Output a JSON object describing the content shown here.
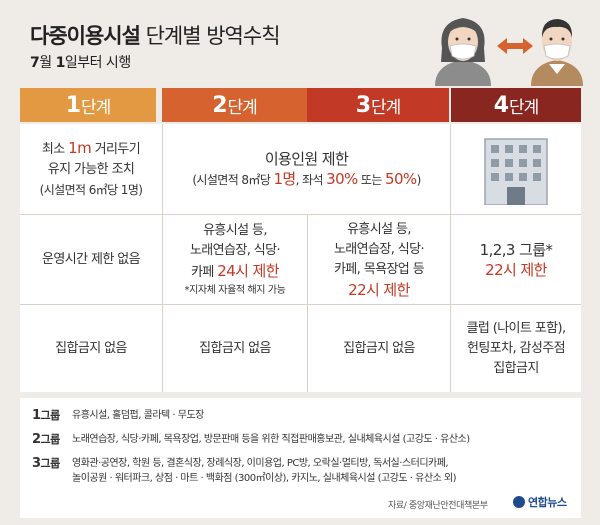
{
  "title": {
    "bold": "다중이용시설",
    "rest": " 단계별 방역수칙"
  },
  "subtitle": {
    "month": "7",
    "m1": "월 ",
    "day": "1",
    "m2": "일부터 시행"
  },
  "stages": [
    {
      "num": "1",
      "label": "단계",
      "color": "#e39942"
    },
    {
      "num": "2",
      "label": "단계",
      "color": "#d5622f"
    },
    {
      "num": "3",
      "label": "단계",
      "color": "#c23a26"
    },
    {
      "num": "4",
      "label": "단계",
      "color": "#8a2620"
    }
  ],
  "row1": {
    "s1_a": "최소 ",
    "s1_red": "1m",
    "s1_b": " 거리두기",
    "s1_line2": "유지 가능한 조치",
    "s1_line3": "(시설면적 6㎡당 1명)",
    "s23_line1": "이용인원 제한",
    "s23_a": "(시설면적 8㎡당 ",
    "s23_red1": "1명",
    "s23_b": ", 좌석 ",
    "s23_red2": "30%",
    "s23_c": " 또는 ",
    "s23_red3": "50%",
    "s23_d": ")",
    "s4_icon": "building-icon"
  },
  "row2": {
    "s1": "운영시간 제한 없음",
    "s2_line1": "유흥시설 등,",
    "s2_line2": "노래연습장, 식당·",
    "s2_a": "카페 ",
    "s2_red": "24시 제한",
    "s2_note": "*지자체 자율적 해지 가능",
    "s3_line1": "유흥시설 등,",
    "s3_line2": "노래연습장, 식당·",
    "s3_line3": "카페, 목욕장업 등",
    "s3_red": "22시 제한",
    "s4_line1": "1,2,3 그룹*",
    "s4_red": "22시 제한"
  },
  "row3": {
    "s1": "집합금지 없음",
    "s2": "집합금지 없음",
    "s3": "집합금지 없음",
    "s4_line1": "클럽 (나이트 포함),",
    "s4_line2": "헌팅포차, 감성주점",
    "s4_line3": "집합금지"
  },
  "groups": [
    {
      "n": "1",
      "g": "그룹",
      "text": "유흥시설, 홀덤펍, 콜라텍 · 무도장"
    },
    {
      "n": "2",
      "g": "그룹",
      "text": "노래연습장, 식당·카페, 목욕장업, 방문판매 등을 위한 직접판매홍보관, 실내체육시설 (고강도 · 유산소)"
    },
    {
      "n": "3",
      "g": "그룹",
      "text": "영화관·공연장, 학원 등, 결혼식장, 장례식장, 이미용업, PC방, 오락실·멀티방, 독서실·스터디카페,",
      "text2": "놀이공원 · 워터파크, 상점 · 마트 · 백화점 (300㎡이상), 카지노, 실내체육시설 (고강도 · 유산소 외)"
    }
  ],
  "source": "자료/ 중앙재난안전대책본부",
  "brand": "연합뉴스",
  "icons": {
    "people": "masked-people-exchange-icon",
    "brand": "yonhap-logo-icon"
  }
}
